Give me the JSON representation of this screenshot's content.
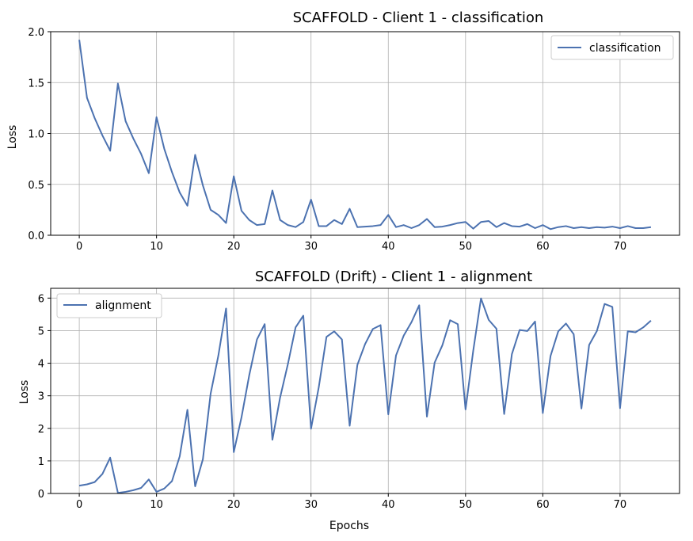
{
  "chart_data": [
    {
      "type": "line",
      "title": "SCAFFOLD - Client 1 - classification",
      "xlabel": "",
      "ylabel": "Loss",
      "xlim": [
        -3.7,
        77.7
      ],
      "ylim": [
        0.0,
        2.0
      ],
      "xticks": [
        0,
        10,
        20,
        30,
        40,
        50,
        60,
        70
      ],
      "yticks": [
        0.0,
        0.5,
        1.0,
        1.5,
        2.0
      ],
      "ytick_labels": [
        "0.0",
        "0.5",
        "1.0",
        "1.5",
        "2.0"
      ],
      "grid": true,
      "legend": "top-right",
      "series": [
        {
          "name": "classification",
          "color": "#4c72b0",
          "values": [
            1.92,
            1.35,
            1.15,
            0.98,
            0.83,
            1.49,
            1.12,
            0.95,
            0.8,
            0.61,
            1.16,
            0.85,
            0.62,
            0.42,
            0.29,
            0.79,
            0.49,
            0.25,
            0.2,
            0.12,
            0.58,
            0.24,
            0.15,
            0.1,
            0.11,
            0.44,
            0.15,
            0.1,
            0.08,
            0.13,
            0.35,
            0.09,
            0.09,
            0.15,
            0.11,
            0.26,
            0.08,
            0.085,
            0.09,
            0.1,
            0.2,
            0.08,
            0.1,
            0.07,
            0.1,
            0.16,
            0.08,
            0.085,
            0.1,
            0.12,
            0.13,
            0.065,
            0.13,
            0.14,
            0.08,
            0.12,
            0.09,
            0.085,
            0.11,
            0.07,
            0.1,
            0.06,
            0.08,
            0.09,
            0.07,
            0.08,
            0.07,
            0.08,
            0.075,
            0.085,
            0.07,
            0.09,
            0.07,
            0.07,
            0.08
          ]
        }
      ]
    },
    {
      "type": "line",
      "title": "SCAFFOLD (Drift) - Client 1 - alignment",
      "xlabel": "Epochs",
      "ylabel": "Loss",
      "xlim": [
        -3.7,
        77.7
      ],
      "ylim": [
        0,
        6.3
      ],
      "xticks": [
        0,
        10,
        20,
        30,
        40,
        50,
        60,
        70
      ],
      "yticks": [
        0,
        1,
        2,
        3,
        4,
        5,
        6
      ],
      "ytick_labels": [
        "0",
        "1",
        "2",
        "3",
        "4",
        "5",
        "6"
      ],
      "grid": true,
      "legend": "top-left",
      "series": [
        {
          "name": "alignment",
          "color": "#4c72b0",
          "values": [
            0.24,
            0.28,
            0.35,
            0.6,
            1.1,
            0.02,
            0.05,
            0.1,
            0.17,
            0.43,
            0.05,
            0.15,
            0.38,
            1.14,
            2.57,
            0.22,
            1.05,
            3.06,
            4.23,
            5.68,
            1.27,
            2.34,
            3.63,
            4.73,
            5.2,
            1.65,
            2.95,
            3.97,
            5.1,
            5.46,
            1.99,
            3.26,
            4.81,
            4.98,
            4.73,
            2.08,
            3.95,
            4.59,
            5.05,
            5.17,
            2.43,
            4.24,
            4.85,
            5.26,
            5.78,
            2.36,
            4.02,
            4.55,
            5.32,
            5.2,
            2.58,
            4.39,
            5.99,
            5.33,
            5.06,
            2.44,
            4.28,
            5.02,
            4.99,
            5.28,
            2.47,
            4.22,
            4.98,
            5.22,
            4.89,
            2.61,
            4.56,
            4.99,
            5.82,
            5.73,
            2.62,
            4.98,
            4.95,
            5.1,
            5.31
          ]
        }
      ]
    }
  ]
}
